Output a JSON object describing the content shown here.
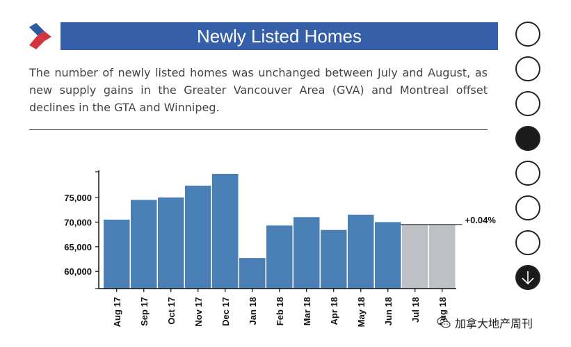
{
  "header": {
    "title": "Newly Listed Homes"
  },
  "description": "The number of newly listed homes was unchanged between July and August, as new supply gains in the Greater Vancouver Area (GVA) and Montreal offset declines in the GTA and Winnipeg.",
  "pager": {
    "count": 8,
    "active_index": 3,
    "last_icon": "arrow-down-icon"
  },
  "watermark": {
    "text": "加拿大地产周刊",
    "icon": "wechat-icon"
  },
  "colors": {
    "bar": "#4a7fb5",
    "bar_recent": "#bdc1c6",
    "header": "#3560a9"
  },
  "chart_data": {
    "type": "bar",
    "title": "",
    "xlabel": "",
    "ylabel": "",
    "categories": [
      "Aug 17",
      "Sep 17",
      "Oct 17",
      "Nov 17",
      "Dec 17",
      "Jan 18",
      "Feb 18",
      "Mar 18",
      "Apr 18",
      "May 18",
      "Jun 18",
      "Jul 18",
      "Aug 18"
    ],
    "values": [
      70500,
      74500,
      75000,
      77400,
      79800,
      62700,
      69300,
      71000,
      68400,
      71500,
      70000,
      69500,
      69500
    ],
    "highlight_last": 2,
    "ylim": [
      56500,
      80500
    ],
    "yticks": [
      60000,
      65000,
      70000,
      75000
    ],
    "ytick_labels": [
      "60,000",
      "65,000",
      "70,000",
      "75,000"
    ],
    "annotation": "+0.04%"
  }
}
